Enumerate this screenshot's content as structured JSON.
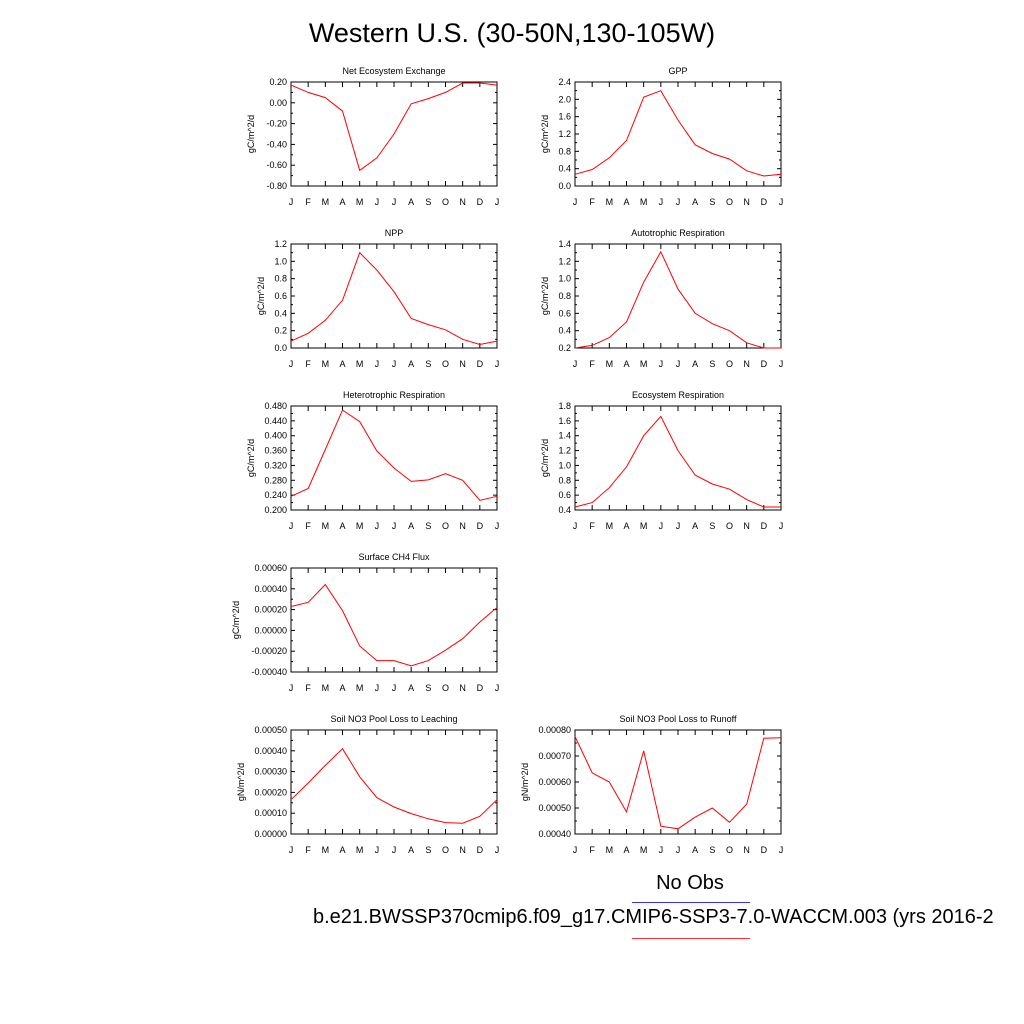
{
  "figure": {
    "title": "Western U.S. (30-50N,130-105W)"
  },
  "legend": {
    "obs_label": "No Obs",
    "obs_color": "#3333ff",
    "case_label": "b.e21.BWSSP370cmip6.f09_g17.CMIP6-SSP3-7.0-WACCM.003 (yrs 2016-2",
    "case_color": "#ff3333"
  },
  "series_color": "#ff0000",
  "chart_data": [
    {
      "type": "line",
      "title": "Net Ecosystem Exchange",
      "ylabel": "gC/m^2/d",
      "categories": [
        "J",
        "F",
        "M",
        "A",
        "M",
        "J",
        "J",
        "A",
        "S",
        "O",
        "N",
        "D",
        "J"
      ],
      "values": [
        0.17,
        0.1,
        0.05,
        -0.08,
        -0.65,
        -0.53,
        -0.3,
        -0.01,
        0.04,
        0.1,
        0.19,
        0.19,
        0.17
      ],
      "ylim": [
        -0.8,
        0.2
      ],
      "yticks": [
        -0.8,
        -0.6,
        -0.4,
        -0.2,
        0.0,
        0.2
      ],
      "yticklabels": [
        "-0.80",
        "-0.60",
        "-0.40",
        "-0.20",
        "0.00",
        "0.20"
      ]
    },
    {
      "type": "line",
      "title": "GPP",
      "ylabel": "gC/m^2/d",
      "categories": [
        "J",
        "F",
        "M",
        "A",
        "M",
        "J",
        "J",
        "A",
        "S",
        "O",
        "N",
        "D",
        "J"
      ],
      "values": [
        0.27,
        0.38,
        0.65,
        1.05,
        2.05,
        2.2,
        1.52,
        0.95,
        0.75,
        0.62,
        0.35,
        0.23,
        0.27
      ],
      "ylim": [
        0,
        2.4
      ],
      "yticks": [
        0,
        0.4,
        0.8,
        1.2,
        1.6,
        2.0,
        2.4
      ],
      "yticklabels": [
        "0.0",
        "0.4",
        "0.8",
        "1.2",
        "1.6",
        "2.0",
        "2.4"
      ]
    },
    {
      "type": "line",
      "title": "NPP",
      "ylabel": "gC/m^2/d",
      "categories": [
        "J",
        "F",
        "M",
        "A",
        "M",
        "J",
        "J",
        "A",
        "S",
        "O",
        "N",
        "D",
        "J"
      ],
      "values": [
        0.08,
        0.17,
        0.32,
        0.55,
        1.1,
        0.9,
        0.65,
        0.34,
        0.27,
        0.21,
        0.1,
        0.04,
        0.08
      ],
      "ylim": [
        0,
        1.2
      ],
      "yticks": [
        0,
        0.2,
        0.4,
        0.6,
        0.8,
        1.0,
        1.2
      ],
      "yticklabels": [
        "0.0",
        "0.2",
        "0.4",
        "0.6",
        "0.8",
        "1.0",
        "1.2"
      ]
    },
    {
      "type": "line",
      "title": "Autotrophic Respiration",
      "ylabel": "gC/m^2/d",
      "categories": [
        "J",
        "F",
        "M",
        "A",
        "M",
        "J",
        "J",
        "A",
        "S",
        "O",
        "N",
        "D",
        "J"
      ],
      "values": [
        0.2,
        0.23,
        0.32,
        0.5,
        0.96,
        1.31,
        0.88,
        0.6,
        0.48,
        0.4,
        0.26,
        0.2,
        0.2
      ],
      "ylim": [
        0.2,
        1.4
      ],
      "yticks": [
        0.2,
        0.4,
        0.6,
        0.8,
        1.0,
        1.2,
        1.4
      ],
      "yticklabels": [
        "0.2",
        "0.4",
        "0.6",
        "0.8",
        "1.0",
        "1.2",
        "1.4"
      ]
    },
    {
      "type": "line",
      "title": "Heterotrophic Respiration",
      "ylabel": "gC/m^2/d",
      "categories": [
        "J",
        "F",
        "M",
        "A",
        "M",
        "J",
        "J",
        "A",
        "S",
        "O",
        "N",
        "D",
        "J"
      ],
      "values": [
        0.237,
        0.258,
        0.363,
        0.469,
        0.438,
        0.359,
        0.313,
        0.277,
        0.281,
        0.298,
        0.28,
        0.226,
        0.237
      ],
      "ylim": [
        0.2,
        0.48
      ],
      "yticks": [
        0.2,
        0.24,
        0.28,
        0.32,
        0.36,
        0.4,
        0.44,
        0.48
      ],
      "yticklabels": [
        "0.200",
        "0.240",
        "0.280",
        "0.320",
        "0.360",
        "0.400",
        "0.440",
        "0.480"
      ]
    },
    {
      "type": "line",
      "title": "Ecosystem Respiration",
      "ylabel": "gC/m^2/d",
      "categories": [
        "J",
        "F",
        "M",
        "A",
        "M",
        "J",
        "J",
        "A",
        "S",
        "O",
        "N",
        "D",
        "J"
      ],
      "values": [
        0.44,
        0.5,
        0.7,
        0.98,
        1.4,
        1.66,
        1.2,
        0.87,
        0.75,
        0.68,
        0.54,
        0.44,
        0.44
      ],
      "ylim": [
        0.4,
        1.8
      ],
      "yticks": [
        0.4,
        0.6,
        0.8,
        1.0,
        1.2,
        1.4,
        1.6,
        1.8
      ],
      "yticklabels": [
        "0.4",
        "0.6",
        "0.8",
        "1.0",
        "1.2",
        "1.4",
        "1.6",
        "1.8"
      ]
    },
    {
      "type": "line",
      "title": "Surface CH4 Flux",
      "ylabel": "gC/m^2/d",
      "categories": [
        "J",
        "F",
        "M",
        "A",
        "M",
        "J",
        "J",
        "A",
        "S",
        "O",
        "N",
        "D",
        "J"
      ],
      "values": [
        0.00023,
        0.00027,
        0.00044,
        0.00019,
        -0.00015,
        -0.00029,
        -0.00029,
        -0.00034,
        -0.00029,
        -0.00019,
        -8e-05,
        8e-05,
        0.00022
      ],
      "ylim": [
        -0.0004,
        0.0006
      ],
      "yticks": [
        -0.0004,
        -0.0002,
        0,
        0.0002,
        0.0004,
        0.0006
      ],
      "yticklabels": [
        "-0.00040",
        "-0.00020",
        "0.00000",
        "0.00020",
        "0.00040",
        "0.00060"
      ]
    },
    {
      "type": "line",
      "title": "Soil NO3 Pool Loss to Leaching",
      "ylabel": "gN/m^2/d",
      "categories": [
        "J",
        "F",
        "M",
        "A",
        "M",
        "J",
        "J",
        "A",
        "S",
        "O",
        "N",
        "D",
        "J"
      ],
      "values": [
        0.000165,
        0.000245,
        0.00033,
        0.00041,
        0.000275,
        0.000175,
        0.00013,
        9.8e-05,
        7.3e-05,
        5.5e-05,
        5.2e-05,
        8.5e-05,
        0.000165
      ],
      "ylim": [
        0,
        0.0005
      ],
      "yticks": [
        0,
        0.0001,
        0.0002,
        0.0003,
        0.0004,
        0.0005
      ],
      "yticklabels": [
        "0.00000",
        "0.00010",
        "0.00020",
        "0.00030",
        "0.00040",
        "0.00050"
      ]
    },
    {
      "type": "line",
      "title": "Soil NO3 Pool Loss to Runoff",
      "ylabel": "gN/m^2/d",
      "categories": [
        "J",
        "F",
        "M",
        "A",
        "M",
        "J",
        "J",
        "A",
        "S",
        "O",
        "N",
        "D",
        "J"
      ],
      "values": [
        0.000775,
        0.000635,
        0.0006,
        0.000485,
        0.00072,
        0.00043,
        0.00042,
        0.000465,
        0.0005,
        0.000445,
        0.000515,
        0.000768,
        0.00077
      ],
      "ylim": [
        0.0004,
        0.0008
      ],
      "yticks": [
        0.0004,
        0.0005,
        0.0006,
        0.0007,
        0.0008
      ],
      "yticklabels": [
        "0.00040",
        "0.00050",
        "0.00060",
        "0.00070",
        "0.00080"
      ]
    }
  ]
}
